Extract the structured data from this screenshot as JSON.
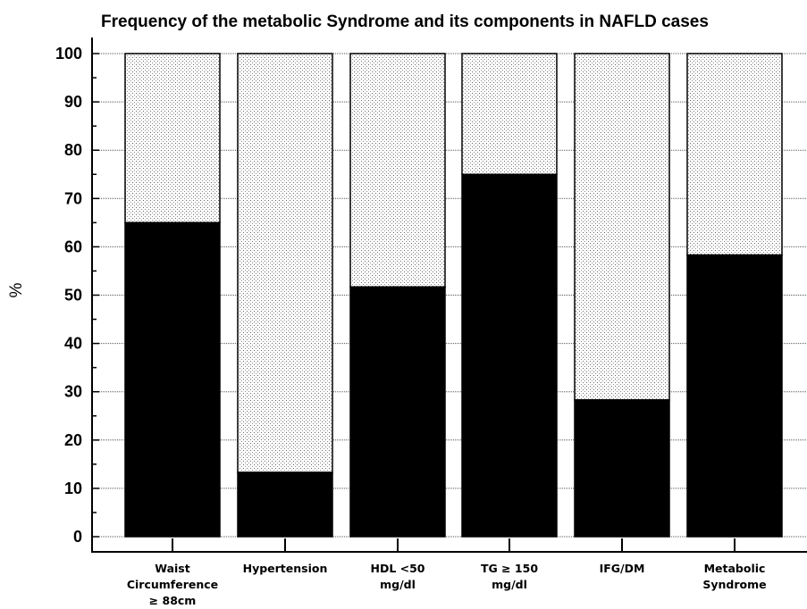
{
  "chart_data": {
    "type": "bar",
    "stacked_to_100": true,
    "title": "Frequency of the metabolic Syndrome and its components in NAFLD cases",
    "ylabel": "%",
    "xlabel": "",
    "ylim": [
      0,
      100
    ],
    "yticks": [
      "0",
      "10",
      "20",
      "30",
      "40",
      "50",
      "60",
      "70",
      "80",
      "90",
      "100"
    ],
    "grid": "horizontal dotted",
    "categories": [
      [
        "Waist",
        "Circumference",
        "≥ 88cm"
      ],
      [
        "Hypertension"
      ],
      [
        "HDL <50",
        "mg/dl"
      ],
      [
        "TG ≥ 150",
        "mg/dl"
      ],
      [
        "IFG/DM"
      ],
      [
        "Metabolic",
        "Syndrome"
      ]
    ],
    "values": [
      65,
      13.3,
      51.7,
      75,
      28.3,
      58.3
    ],
    "colors": {
      "present": "#000000",
      "remainder": "#ffffff",
      "remainder_pattern": "stippled"
    }
  }
}
